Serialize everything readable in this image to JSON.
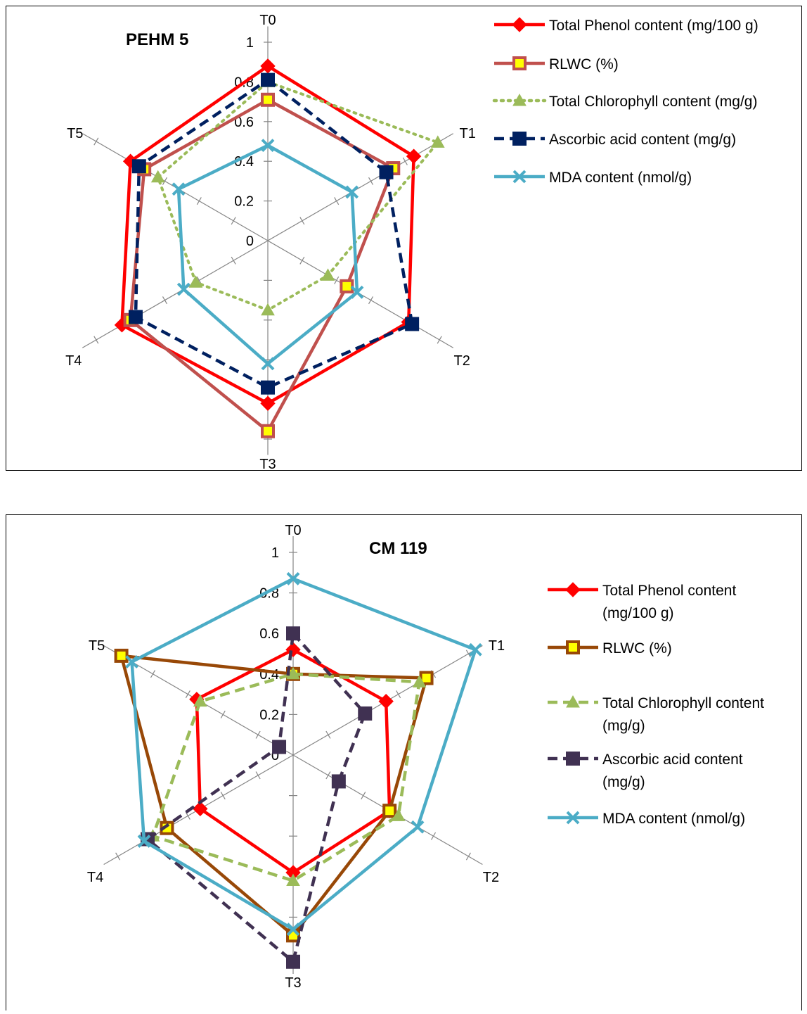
{
  "chart_data": [
    {
      "type": "radar",
      "title": "PEHM 5",
      "axes": [
        "T0",
        "T1",
        "T2",
        "T3",
        "T4",
        "T5"
      ],
      "ticks": [
        "0",
        "0.2",
        "0.4",
        "0.6",
        "0.8",
        "1"
      ],
      "range": [
        0,
        1
      ],
      "legend_position": "right",
      "series": [
        {
          "name": "Total Phenol content (mg/100 g)",
          "values": [
            0.88,
            0.85,
            0.82,
            0.82,
            0.85,
            0.8
          ],
          "color": "#ff0000",
          "dash": "solid",
          "marker": "diamond"
        },
        {
          "name": "RLWC (%)",
          "values": [
            0.71,
            0.73,
            0.46,
            0.96,
            0.8,
            0.72
          ],
          "color": "#c0504d",
          "dash": "solid",
          "marker": "square"
        },
        {
          "name": "Total Chlorophyll content (mg/g)",
          "values": [
            0.8,
            0.99,
            0.35,
            0.35,
            0.42,
            0.64
          ],
          "color": "#9bbb59",
          "dash": "dot",
          "marker": "triangle"
        },
        {
          "name": "Ascorbic acid content (mg/g)",
          "values": [
            0.81,
            0.69,
            0.84,
            0.74,
            0.77,
            0.75
          ],
          "color": "#002060",
          "dash": "dash",
          "marker": "square-dark"
        },
        {
          "name": "MDA content (nmol/g)",
          "values": [
            0.48,
            0.49,
            0.52,
            0.62,
            0.49,
            0.52
          ],
          "color": "#4bacc6",
          "dash": "solid",
          "marker": "x"
        }
      ]
    },
    {
      "type": "radar",
      "title": "CM 119",
      "axes": [
        "T0",
        "T1",
        "T2",
        "T3",
        "T4",
        "T5"
      ],
      "ticks": [
        "0",
        "0.2",
        "0.4",
        "0.6",
        "0.8",
        "1"
      ],
      "range": [
        0,
        1
      ],
      "legend_position": "right",
      "series": [
        {
          "name": "Total Phenol content (mg/100 g)",
          "values": [
            0.52,
            0.53,
            0.55,
            0.58,
            0.53,
            0.55
          ],
          "color": "#ff0000",
          "dash": "solid",
          "marker": "diamond"
        },
        {
          "name": "RLWC (%)",
          "values": [
            0.4,
            0.76,
            0.55,
            0.89,
            0.72,
            0.98
          ],
          "color": "#984807",
          "dash": "solid",
          "marker": "square"
        },
        {
          "name": "Total Chlorophyll content (mg/g)",
          "values": [
            0.4,
            0.72,
            0.6,
            0.62,
            0.8,
            0.53
          ],
          "color": "#9bbb59",
          "dash": "dash",
          "marker": "triangle"
        },
        {
          "name": "Ascorbic acid content (mg/g)",
          "values": [
            0.6,
            0.41,
            0.26,
            1.02,
            0.83,
            0.08
          ],
          "color": "#403152",
          "dash": "dash",
          "marker": "square-dark"
        },
        {
          "name": "MDA content (nmol/g)",
          "values": [
            0.87,
            1.04,
            0.71,
            0.86,
            0.85,
            0.92
          ],
          "color": "#4bacc6",
          "dash": "solid",
          "marker": "x"
        }
      ]
    }
  ],
  "legend1": {
    "items": [
      "Total Phenol content (mg/100 g)",
      "RLWC (%)",
      "Total Chlorophyll content (mg/g)",
      "Ascorbic acid content (mg/g)",
      "MDA content (nmol/g)"
    ]
  },
  "legend2": {
    "items": [
      "Total Phenol content (mg/100 g)",
      "RLWC (%)",
      "Total Chlorophyll content (mg/g)",
      "Ascorbic acid content (mg/g)",
      "MDA content (nmol/g)"
    ]
  }
}
